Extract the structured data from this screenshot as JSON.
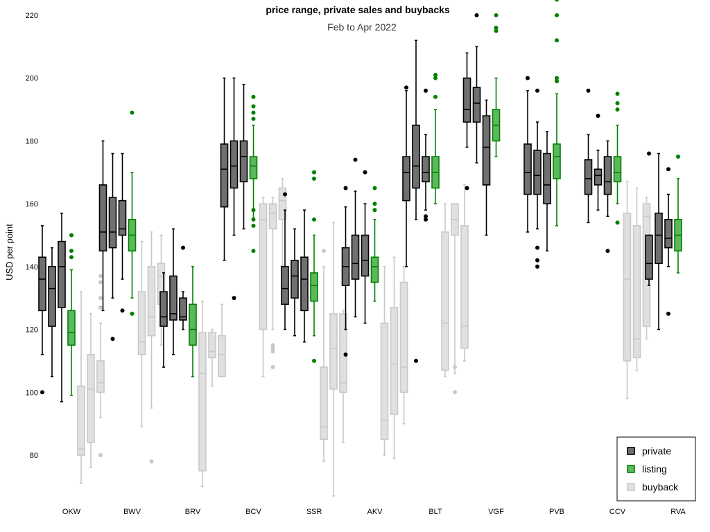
{
  "chart_data": {
    "type": "box",
    "title": "price range, private sales and buybacks",
    "subtitle": "Feb to Apr 2022",
    "ylabel": "USD per point",
    "xlabel": "",
    "ylim": [
      67,
      222
    ],
    "yticks": [
      80,
      100,
      120,
      140,
      160,
      180,
      200,
      220
    ],
    "categories": [
      "OKW",
      "BWV",
      "BRV",
      "BCV",
      "SSR",
      "AKV",
      "BLT",
      "VGF",
      "PVB",
      "CCV",
      "RVA"
    ],
    "legend_position": "bottom-right",
    "grid": false,
    "series": [
      {
        "name": "private",
        "color": "#707070",
        "boxes": [
          [
            {
              "low": 112,
              "q1": 126,
              "median": 136,
              "q3": 143,
              "high": 153,
              "outliers": [
                100
              ]
            },
            {
              "low": 105,
              "q1": 121,
              "median": 133,
              "q3": 140,
              "high": 146,
              "outliers": []
            },
            {
              "low": 97,
              "q1": 127,
              "median": 140,
              "q3": 148,
              "high": 157,
              "outliers": []
            }
          ],
          [
            {
              "low": 126,
              "q1": 145,
              "median": 151,
              "q3": 166,
              "high": 180,
              "outliers": []
            },
            {
              "low": 130,
              "q1": 146,
              "median": 151,
              "q3": 162,
              "high": 176,
              "outliers": [
                117
              ]
            },
            {
              "low": 136,
              "q1": 150,
              "median": 152,
              "q3": 161,
              "high": 176,
              "outliers": [
                126
              ]
            }
          ],
          [
            {
              "low": 108,
              "q1": 121,
              "median": 124,
              "q3": 132,
              "high": 138,
              "outliers": []
            },
            {
              "low": 112,
              "q1": 123,
              "median": 125,
              "q3": 137,
              "high": 152,
              "outliers": []
            },
            {
              "low": 120,
              "q1": 123,
              "median": 124,
              "q3": 130,
              "high": 132,
              "outliers": [
                146
              ]
            }
          ],
          [
            {
              "low": 142,
              "q1": 159,
              "median": 171,
              "q3": 179,
              "high": 200,
              "outliers": []
            },
            {
              "low": 150,
              "q1": 165,
              "median": 172,
              "q3": 180,
              "high": 200,
              "outliers": [
                130
              ]
            },
            {
              "low": 152,
              "q1": 167,
              "median": 175,
              "q3": 180,
              "high": 198,
              "outliers": []
            }
          ],
          [
            {
              "low": 120,
              "q1": 128,
              "median": 133,
              "q3": 140,
              "high": 158,
              "outliers": [
                163
              ]
            },
            {
              "low": 118,
              "q1": 130,
              "median": 137,
              "q3": 142,
              "high": 152,
              "outliers": []
            },
            {
              "low": 116,
              "q1": 126,
              "median": 136,
              "q3": 143,
              "high": 158,
              "outliers": []
            }
          ],
          [
            {
              "low": 120,
              "q1": 134,
              "median": 140,
              "q3": 146,
              "high": 159,
              "outliers": [
                112,
                165
              ]
            },
            {
              "low": 124,
              "q1": 136,
              "median": 141,
              "q3": 150,
              "high": 164,
              "outliers": [
                174
              ]
            },
            {
              "low": 122,
              "q1": 137,
              "median": 142,
              "q3": 150,
              "high": 160,
              "outliers": [
                170
              ]
            }
          ],
          [
            {
              "low": 140,
              "q1": 161,
              "median": 170,
              "q3": 175,
              "high": 196,
              "outliers": [
                197
              ]
            },
            {
              "low": 155,
              "q1": 165,
              "median": 172,
              "q3": 185,
              "high": 212,
              "outliers": [
                110
              ]
            },
            {
              "low": 158,
              "q1": 167,
              "median": 170,
              "q3": 175,
              "high": 182,
              "outliers": [
                196,
                156,
                155
              ]
            }
          ],
          [
            {
              "low": 178,
              "q1": 186,
              "median": 190,
              "q3": 200,
              "high": 208,
              "outliers": [
                165
              ]
            },
            {
              "low": 173,
              "q1": 186,
              "median": 192,
              "q3": 197,
              "high": 210,
              "outliers": [
                220
              ]
            },
            {
              "low": 150,
              "q1": 166,
              "median": 178,
              "q3": 188,
              "high": 193,
              "outliers": []
            }
          ],
          [
            {
              "low": 151,
              "q1": 163,
              "median": 170,
              "q3": 179,
              "high": 196,
              "outliers": [
                200
              ]
            },
            {
              "low": 152,
              "q1": 163,
              "median": 169,
              "q3": 177,
              "high": 186,
              "outliers": [
                196,
                146,
                142,
                140
              ]
            },
            {
              "low": 145,
              "q1": 160,
              "median": 166,
              "q3": 176,
              "high": 183,
              "outliers": []
            }
          ],
          [
            {
              "low": 154,
              "q1": 163,
              "median": 168,
              "q3": 174,
              "high": 182,
              "outliers": [
                196
              ]
            },
            {
              "low": 158,
              "q1": 166,
              "median": 169,
              "q3": 171,
              "high": 177,
              "outliers": [
                188
              ]
            },
            {
              "low": 156,
              "q1": 163,
              "median": 167,
              "q3": 175,
              "high": 180,
              "outliers": [
                145
              ]
            }
          ],
          [
            {
              "low": 134,
              "q1": 136,
              "median": 141,
              "q3": 150,
              "high": 150,
              "outliers": [
                176
              ]
            },
            {
              "low": 120,
              "q1": 141,
              "median": 150,
              "q3": 157,
              "high": 176,
              "outliers": []
            },
            {
              "low": 140,
              "q1": 146,
              "median": 149,
              "q3": 155,
              "high": 163,
              "outliers": [
                171,
                125
              ]
            }
          ]
        ]
      },
      {
        "name": "listing",
        "color": "#5cb85c",
        "boxes": [
          [
            {
              "low": 99,
              "q1": 115,
              "median": 119,
              "q3": 126,
              "high": 139,
              "outliers": [
                150,
                145,
                143
              ]
            }
          ],
          [
            {
              "low": 130,
              "q1": 145,
              "median": 150,
              "q3": 155,
              "high": 170,
              "outliers": [
                189,
                125
              ]
            }
          ],
          [
            {
              "low": 105,
              "q1": 115,
              "median": 120,
              "q3": 128,
              "high": 140,
              "outliers": []
            }
          ],
          [
            {
              "low": 155,
              "q1": 168,
              "median": 172,
              "q3": 175,
              "high": 185,
              "outliers": [
                194,
                191,
                189,
                187,
                158,
                155,
                153,
                145
              ]
            }
          ],
          [
            {
              "low": 118,
              "q1": 129,
              "median": 134,
              "q3": 138,
              "high": 150,
              "outliers": [
                170,
                168,
                155,
                110
              ]
            }
          ],
          [
            {
              "low": 129,
              "q1": 135,
              "median": 140,
              "q3": 143,
              "high": 155,
              "outliers": [
                165,
                160,
                158
              ]
            }
          ],
          [
            {
              "low": 160,
              "q1": 165,
              "median": 170,
              "q3": 175,
              "high": 190,
              "outliers": [
                201,
                200,
                194
              ]
            }
          ],
          [
            {
              "low": 175,
              "q1": 180,
              "median": 185,
              "q3": 190,
              "high": 200,
              "outliers": [
                220,
                216,
                215
              ]
            }
          ],
          [
            {
              "low": 153,
              "q1": 168,
              "median": 175,
              "q3": 179,
              "high": 195,
              "outliers": [
                225,
                220,
                212,
                200,
                199
              ]
            }
          ],
          [
            {
              "low": 160,
              "q1": 167,
              "median": 170,
              "q3": 175,
              "high": 185,
              "outliers": [
                195,
                192,
                190,
                154
              ]
            }
          ],
          [
            {
              "low": 138,
              "q1": 145,
              "median": 150,
              "q3": 155,
              "high": 168,
              "outliers": [
                175
              ]
            }
          ]
        ]
      },
      {
        "name": "buyback",
        "color": "#e0e0e0",
        "boxes": [
          [
            {
              "low": 71,
              "q1": 80,
              "median": 82,
              "q3": 102,
              "high": 132,
              "outliers": []
            },
            {
              "low": 76,
              "q1": 84,
              "median": 101,
              "q3": 112,
              "high": 125,
              "outliers": []
            },
            {
              "low": 92,
              "q1": 100,
              "median": 103,
              "q3": 110,
              "high": 122,
              "outliers": [
                137,
                135,
                130,
                127,
                80
              ]
            }
          ],
          [
            {
              "low": 89,
              "q1": 112,
              "median": 116,
              "q3": 132,
              "high": 148,
              "outliers": []
            },
            {
              "low": 95,
              "q1": 118,
              "median": 124,
              "q3": 140,
              "high": 151,
              "outliers": [
                78
              ]
            },
            {
              "low": 115,
              "q1": 128,
              "median": 137,
              "q3": 141,
              "high": 150,
              "outliers": []
            }
          ],
          [
            {
              "low": 70,
              "q1": 75,
              "median": 106,
              "q3": 119,
              "high": 129,
              "outliers": []
            },
            {
              "low": 102,
              "q1": 111,
              "median": 113,
              "q3": 119,
              "high": 120,
              "outliers": []
            },
            {
              "low": 105,
              "q1": 105,
              "median": 112,
              "q3": 118,
              "high": 128,
              "outliers": []
            }
          ],
          [
            {
              "low": 105,
              "q1": 120,
              "median": 155,
              "q3": 160,
              "high": 162,
              "outliers": []
            },
            {
              "low": 120,
              "q1": 152,
              "median": 157,
              "q3": 160,
              "high": 162,
              "outliers": [
                115,
                114,
                113,
                108
              ]
            },
            {
              "low": 140,
              "q1": 155,
              "median": 161,
              "q3": 165,
              "high": 168,
              "outliers": [
                140
              ]
            }
          ],
          [
            {
              "low": 78,
              "q1": 85,
              "median": 89,
              "q3": 108,
              "high": 140,
              "outliers": [
                145
              ]
            },
            {
              "low": 67,
              "q1": 101,
              "median": 114,
              "q3": 125,
              "high": 154,
              "outliers": []
            },
            {
              "low": 84,
              "q1": 100,
              "median": 103,
              "q3": 125,
              "high": 126,
              "outliers": []
            }
          ],
          [
            {
              "low": 80,
              "q1": 85,
              "median": 91,
              "q3": 122,
              "high": 140,
              "outliers": []
            },
            {
              "low": 79,
              "q1": 93,
              "median": 109,
              "q3": 127,
              "high": 143,
              "outliers": []
            },
            {
              "low": 90,
              "q1": 100,
              "median": 108,
              "q3": 135,
              "high": 140,
              "outliers": []
            }
          ],
          [
            {
              "low": 105,
              "q1": 107,
              "median": 122,
              "q3": 151,
              "high": 160,
              "outliers": []
            },
            {
              "low": 106,
              "q1": 150,
              "median": 155,
              "q3": 160,
              "high": 160,
              "outliers": [
                108,
                100
              ]
            },
            {
              "low": 110,
              "q1": 114,
              "median": 121,
              "q3": 153,
              "high": 166,
              "outliers": []
            }
          ],
          [],
          [],
          [
            {
              "low": 98,
              "q1": 110,
              "median": 136,
              "q3": 157,
              "high": 167,
              "outliers": []
            },
            {
              "low": 107,
              "q1": 111,
              "median": 117,
              "q3": 153,
              "high": 165,
              "outliers": []
            },
            {
              "low": 117,
              "q1": 121,
              "median": 156,
              "q3": 160,
              "high": 162,
              "outliers": []
            }
          ],
          []
        ]
      }
    ]
  },
  "colors": {
    "private_fill": "#707070",
    "private_stroke": "#000000",
    "listing_fill": "#5cb85c",
    "listing_stroke": "#008000",
    "buyback_fill": "#e0e0e0",
    "buyback_stroke": "#c8c8c8"
  }
}
